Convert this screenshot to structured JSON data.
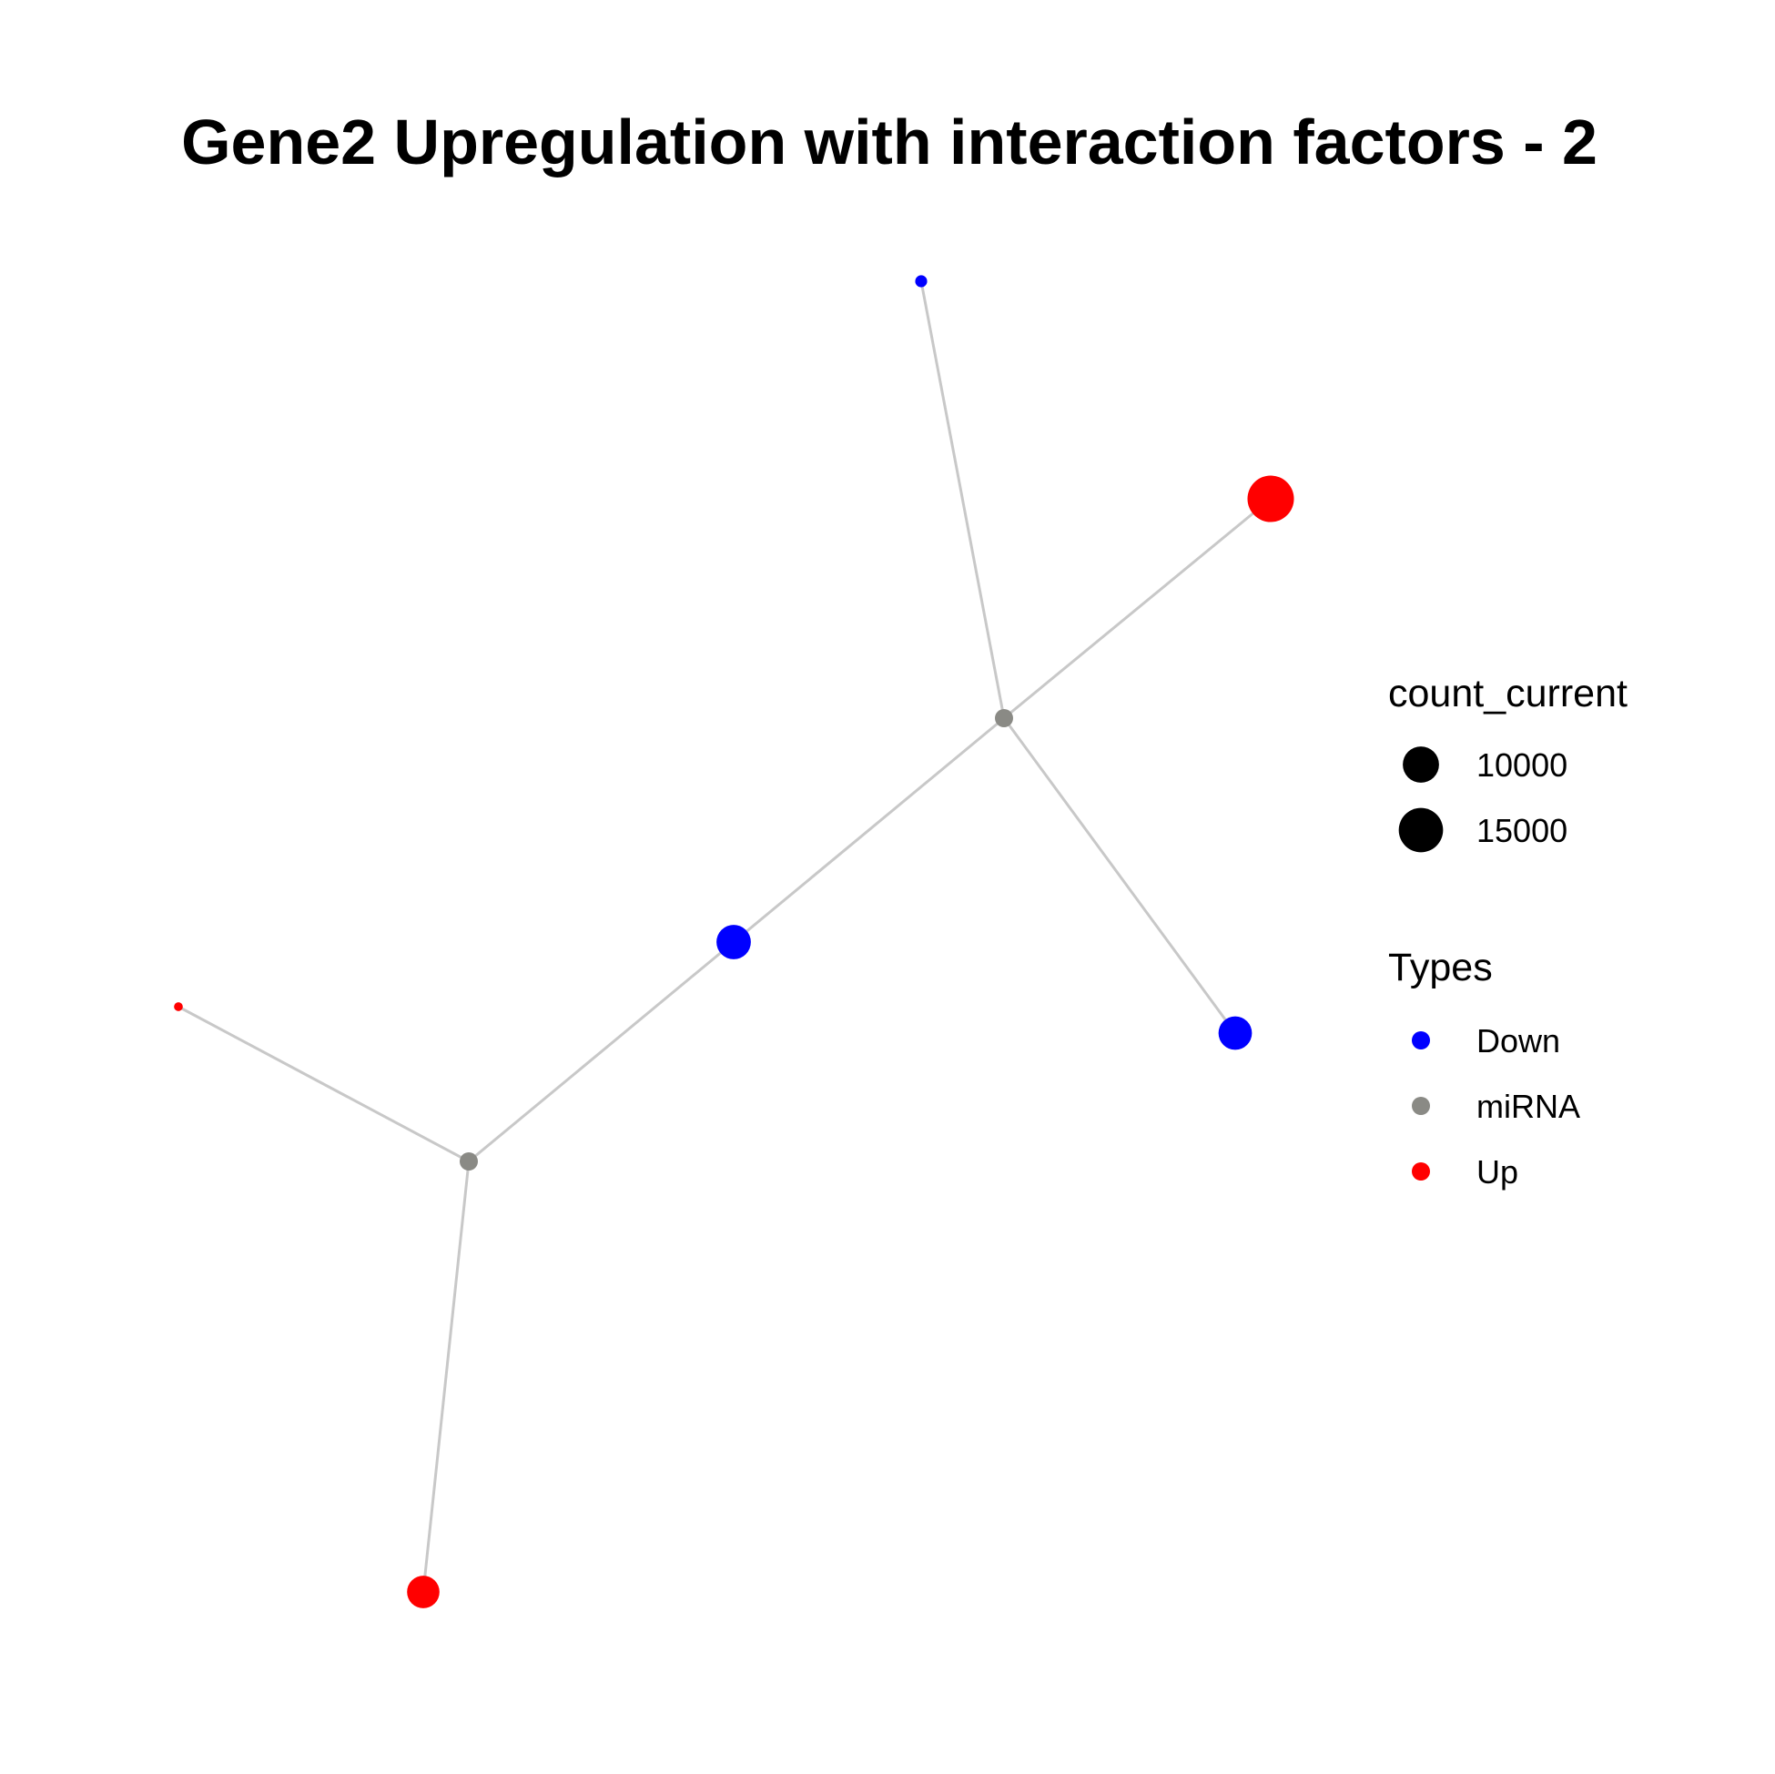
{
  "title": "Gene2 Upregulation with interaction factors - 2",
  "legend": {
    "size_title": "count_current",
    "size_entries": [
      {
        "label": "10000",
        "value": 10000
      },
      {
        "label": "15000",
        "value": 15000
      }
    ],
    "type_title": "Types",
    "type_entries": [
      {
        "label": "Down",
        "color": "#0000ff"
      },
      {
        "label": "miRNA",
        "color": "#8a8a85"
      },
      {
        "label": "Up",
        "color": "#ff0000"
      }
    ]
  },
  "colors": {
    "Down": "#0000ff",
    "miRNA": "#8a8a85",
    "Up": "#ff0000",
    "edge": "#c8c8c8"
  },
  "chart_data": {
    "type": "network",
    "nodes": [
      {
        "id": "mirna1",
        "type": "miRNA"
      },
      {
        "id": "mirna2",
        "type": "miRNA"
      },
      {
        "id": "down_top",
        "type": "Down",
        "count_current": 1000
      },
      {
        "id": "up_top_right",
        "type": "Up",
        "count_current": 16500
      },
      {
        "id": "down_center",
        "type": "Down",
        "count_current": 9000
      },
      {
        "id": "down_right",
        "type": "Down",
        "count_current": 8500
      },
      {
        "id": "up_left",
        "type": "Up",
        "count_current": 500
      },
      {
        "id": "up_bottom",
        "type": "Up",
        "count_current": 8000
      }
    ],
    "edges": [
      [
        "mirna1",
        "down_top"
      ],
      [
        "mirna1",
        "up_top_right"
      ],
      [
        "mirna1",
        "down_right"
      ],
      [
        "mirna1",
        "down_center"
      ],
      [
        "down_center",
        "mirna2"
      ],
      [
        "mirna2",
        "up_left"
      ],
      [
        "mirna2",
        "up_bottom"
      ]
    ]
  }
}
